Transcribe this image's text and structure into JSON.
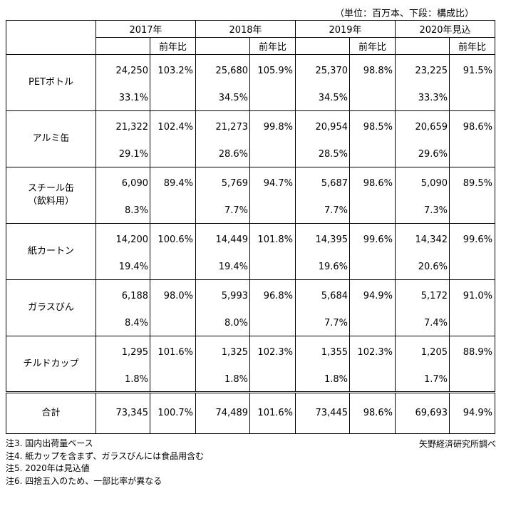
{
  "unit_note": "（単位：百万本、下段：構成比）",
  "years": [
    "2017年",
    "2018年",
    "2019年",
    "2020年見込"
  ],
  "yoy_label": "前年比",
  "rows": [
    {
      "name": "PETボトル",
      "cells": [
        {
          "value": "24,250",
          "share": "33.1%",
          "yoy": "103.2%"
        },
        {
          "value": "25,680",
          "share": "34.5%",
          "yoy": "105.9%"
        },
        {
          "value": "25,370",
          "share": "34.5%",
          "yoy": "98.8%"
        },
        {
          "value": "23,225",
          "share": "33.3%",
          "yoy": "91.5%"
        }
      ]
    },
    {
      "name": "アルミ缶",
      "cells": [
        {
          "value": "21,322",
          "share": "29.1%",
          "yoy": "102.4%"
        },
        {
          "value": "21,273",
          "share": "28.6%",
          "yoy": "99.8%"
        },
        {
          "value": "20,954",
          "share": "28.5%",
          "yoy": "98.5%"
        },
        {
          "value": "20,659",
          "share": "29.6%",
          "yoy": "98.6%"
        }
      ]
    },
    {
      "name": "スチール缶",
      "sub": "（飲料用）",
      "cells": [
        {
          "value": "6,090",
          "share": "8.3%",
          "yoy": "89.4%"
        },
        {
          "value": "5,769",
          "share": "7.7%",
          "yoy": "94.7%"
        },
        {
          "value": "5,687",
          "share": "7.7%",
          "yoy": "98.6%"
        },
        {
          "value": "5,090",
          "share": "7.3%",
          "yoy": "89.5%"
        }
      ]
    },
    {
      "name": "紙カートン",
      "cells": [
        {
          "value": "14,200",
          "share": "19.4%",
          "yoy": "100.6%"
        },
        {
          "value": "14,449",
          "share": "19.4%",
          "yoy": "101.8%"
        },
        {
          "value": "14,395",
          "share": "19.6%",
          "yoy": "99.6%"
        },
        {
          "value": "14,342",
          "share": "20.6%",
          "yoy": "99.6%"
        }
      ]
    },
    {
      "name": "ガラスびん",
      "cells": [
        {
          "value": "6,188",
          "share": "8.4%",
          "yoy": "98.0%"
        },
        {
          "value": "5,993",
          "share": "8.0%",
          "yoy": "96.8%"
        },
        {
          "value": "5,684",
          "share": "7.7%",
          "yoy": "94.9%"
        },
        {
          "value": "5,172",
          "share": "7.4%",
          "yoy": "91.0%"
        }
      ]
    },
    {
      "name": "チルドカップ",
      "cells": [
        {
          "value": "1,295",
          "share": "1.8%",
          "yoy": "101.6%"
        },
        {
          "value": "1,325",
          "share": "1.8%",
          "yoy": "102.3%"
        },
        {
          "value": "1,355",
          "share": "1.8%",
          "yoy": "102.3%"
        },
        {
          "value": "1,205",
          "share": "1.7%",
          "yoy": "88.9%"
        }
      ]
    }
  ],
  "total": {
    "name": "合計",
    "cells": [
      {
        "value": "73,345",
        "yoy": "100.7%"
      },
      {
        "value": "74,489",
        "yoy": "101.6%"
      },
      {
        "value": "73,445",
        "yoy": "98.6%"
      },
      {
        "value": "69,693",
        "yoy": "94.9%"
      }
    ]
  },
  "notes": [
    "注3.  国内出荷量ベース",
    "注4.  紙カップを含まず、ガラスびんには食品用含む",
    "注5.  2020年は見込値",
    "注6.  四捨五入のため、一部比率が異なる"
  ],
  "source": "矢野経済研究所調べ"
}
